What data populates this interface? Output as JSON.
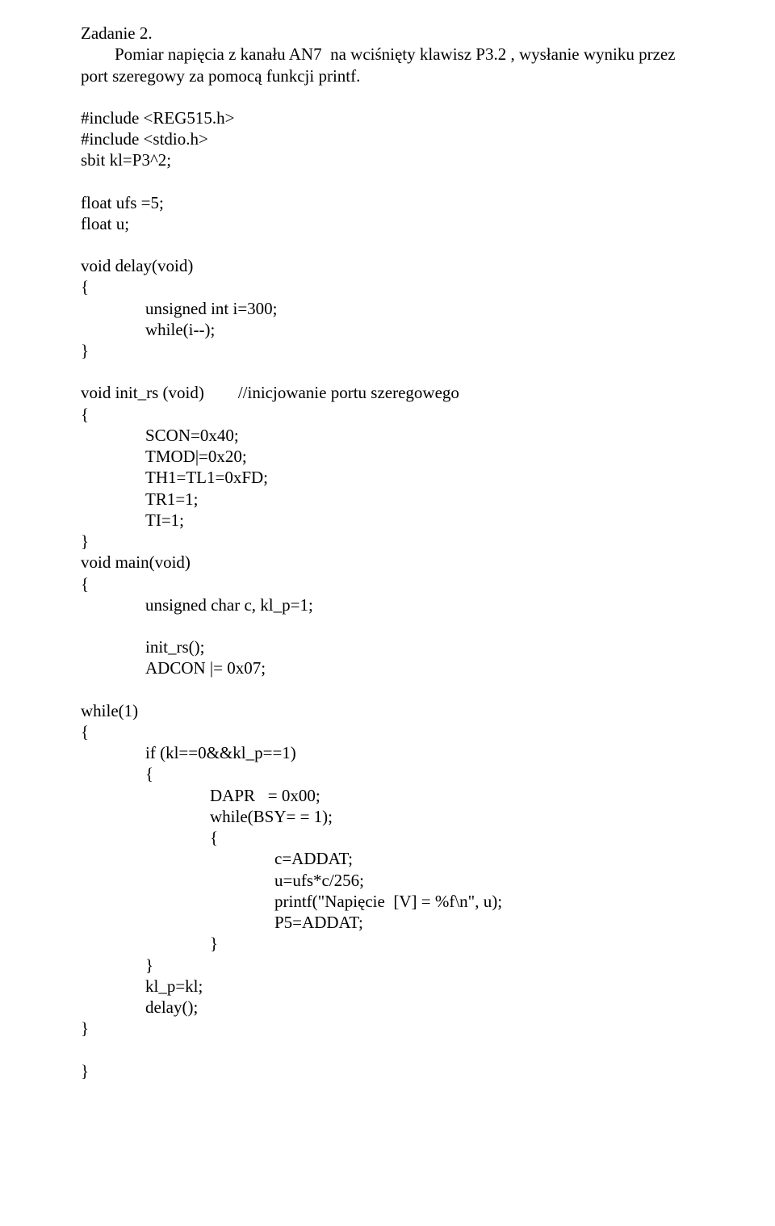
{
  "doc": {
    "title": "Zadanie 2.",
    "intro1": "        Pomiar napięcia z kanału AN7  na wciśnięty klawisz P3.2 , wysłanie wyniku przez",
    "intro2": "port szeregowy za pomocą funkcji printf.",
    "inc1": "#include <REG515.h>",
    "inc2": "#include <stdio.h>",
    "sbit": "sbit kl=P3^2;",
    "ufs": "float ufs =5;",
    "u": "float u;",
    "delay_sig": "void delay(void)",
    "ob": "{",
    "cb": "}",
    "delay_b1": "unsigned int i=300;",
    "delay_b2": "while(i--);",
    "initrs_sig": "void init_rs (void)        //inicjowanie portu szeregowego",
    "initrs_b1": "SCON=0x40;",
    "initrs_b2": "TMOD|=0x20;",
    "initrs_b3": "TH1=TL1=0xFD;",
    "initrs_b4": "TR1=1;",
    "initrs_b5": "TI=1;",
    "main_sig": "void main(void)",
    "main_b1": "unsigned char c, kl_p=1;",
    "main_b2": "init_rs();",
    "main_b3": "ADCON |= 0x07;",
    "while1": "while(1)",
    "if1": "if (kl==0&&kl_p==1)",
    "dapr": "DAPR   = 0x00;",
    "whilebsy": "while(BSY= = 1);",
    "caddat": "c=ADDAT;",
    "uexpr": "u=ufs*c/256;",
    "printf": "printf(\"Napięcie  [V] = %f\\n\", u);",
    "p5": "P5=ADDAT;",
    "klp": "kl_p=kl;",
    "delaycall": "delay();"
  }
}
